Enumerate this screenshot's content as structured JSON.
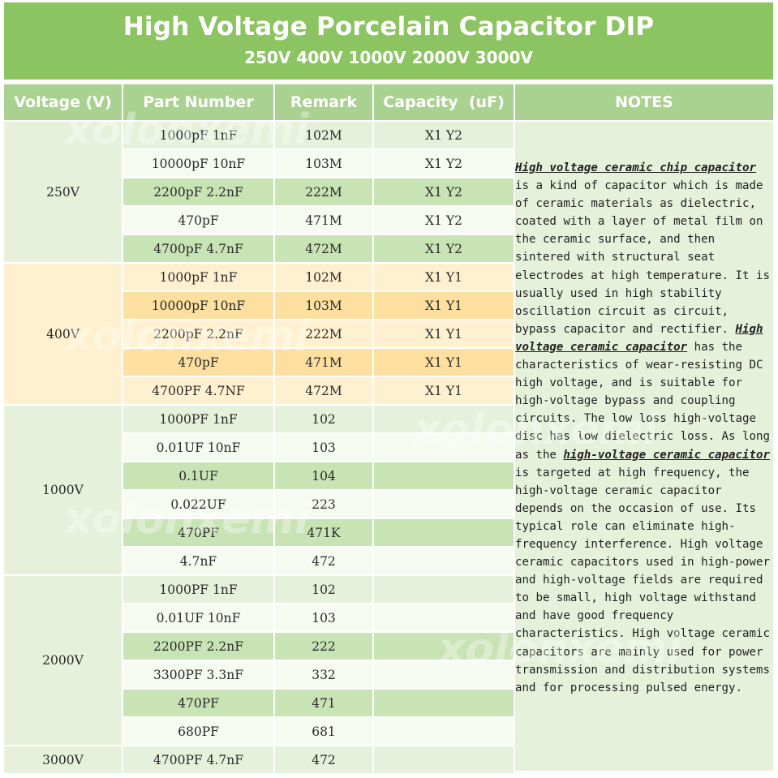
{
  "header": {
    "title": "High Voltage Porcelain Capacitor DIP",
    "subtitle": "250V 400V 1000V 2000V 3000V"
  },
  "columns": [
    "Voltage (V)",
    "Part Number",
    "Remark",
    "Capacity  (uF)",
    "NOTES"
  ],
  "groups": [
    {
      "voltage": "250V",
      "theme": "green",
      "rows": [
        {
          "part": "1000pF 1nF",
          "remark": "102M",
          "capacity": "X1 Y2"
        },
        {
          "part": "10000pF 10nF",
          "remark": "103M",
          "capacity": "X1 Y2"
        },
        {
          "part": "2200pF 2.2nF",
          "remark": "222M",
          "capacity": "X1 Y2"
        },
        {
          "part": "470pF",
          "remark": "471M",
          "capacity": "X1 Y2"
        },
        {
          "part": "4700pF 4.7nF",
          "remark": "472M",
          "capacity": "X1 Y2"
        }
      ]
    },
    {
      "voltage": "400V",
      "theme": "yellow",
      "rows": [
        {
          "part": "1000pF 1nF",
          "remark": "102M",
          "capacity": "X1 Y1"
        },
        {
          "part": "10000pF 10nF",
          "remark": "103M",
          "capacity": "X1 Y1"
        },
        {
          "part": "2200pF 2.2nF",
          "remark": "222M",
          "capacity": "X1 Y1"
        },
        {
          "part": "470pF",
          "remark": "471M",
          "capacity": "X1 Y1"
        },
        {
          "part": "4700PF 4.7NF",
          "remark": "472M",
          "capacity": "X1 Y1"
        }
      ]
    },
    {
      "voltage": "1000V",
      "theme": "green",
      "rows": [
        {
          "part": "1000PF 1nF",
          "remark": "102",
          "capacity": ""
        },
        {
          "part": "0.01UF 10nF",
          "remark": "103",
          "capacity": ""
        },
        {
          "part": "0.1UF",
          "remark": "104",
          "capacity": ""
        },
        {
          "part": "0.022UF",
          "remark": "223",
          "capacity": ""
        },
        {
          "part": "470PF",
          "remark": "471K",
          "capacity": ""
        },
        {
          "part": "4.7nF",
          "remark": "472",
          "capacity": ""
        }
      ]
    },
    {
      "voltage": "2000V",
      "theme": "green",
      "rows": [
        {
          "part": "1000PF 1nF",
          "remark": "102",
          "capacity": ""
        },
        {
          "part": "0.01UF 10nF",
          "remark": "103",
          "capacity": ""
        },
        {
          "part": "2200PF 2.2nF",
          "remark": "222",
          "capacity": ""
        },
        {
          "part": "3300PF 3.3nF",
          "remark": "332",
          "capacity": ""
        },
        {
          "part": "470PF",
          "remark": "471",
          "capacity": ""
        },
        {
          "part": "680PF",
          "remark": "681",
          "capacity": ""
        }
      ]
    },
    {
      "voltage": "3000V",
      "theme": "green",
      "rows": [
        {
          "part": "4700PF 4.7nF",
          "remark": "472",
          "capacity": ""
        }
      ]
    }
  ],
  "notes": [
    {
      "text": "High voltage ceramic chip capacitor",
      "highlight": true
    },
    {
      "text": " is a kind of capacitor which is made of ceramic materials as dielectric, coated with a layer of metal film on the ceramic surface, and then sintered with structural seat electrodes at high temperature. It is usually used in high stability oscillation circuit as circuit, bypass capacitor and rectifier. ",
      "highlight": false
    },
    {
      "text": "High voltage ceramic capacitor",
      "highlight": true
    },
    {
      "text": " has the characteristics of wear-resisting DC high voltage, and is suitable for high-voltage bypass and coupling circuits. The low loss high-voltage disc has low dielectric loss. As long as the ",
      "highlight": false
    },
    {
      "text": "high-voltage ceramic capacitor",
      "highlight": true
    },
    {
      "text": " is targeted at high frequency, the high-voltage ceramic capacitor depends on the occasion of use. Its typical role can eliminate high-frequency interference. High voltage ceramic capacitors used in high-power and high-voltage fields are required to be small, high voltage withstand and have good frequency characteristics. High voltage ceramic capacitors are mainly used for power transmission and distribution systems and for processing pulsed energy.",
      "highlight": false
    }
  ],
  "watermark": "xolonxemi",
  "colors": {
    "header_bg": "#8cc462",
    "column_header_bg": "#a9d190",
    "green_light": "#e5f1da",
    "green_mid": "#c8e3b4",
    "yellow_light": "#fff1cf",
    "yellow_dark": "#fde0a0"
  }
}
